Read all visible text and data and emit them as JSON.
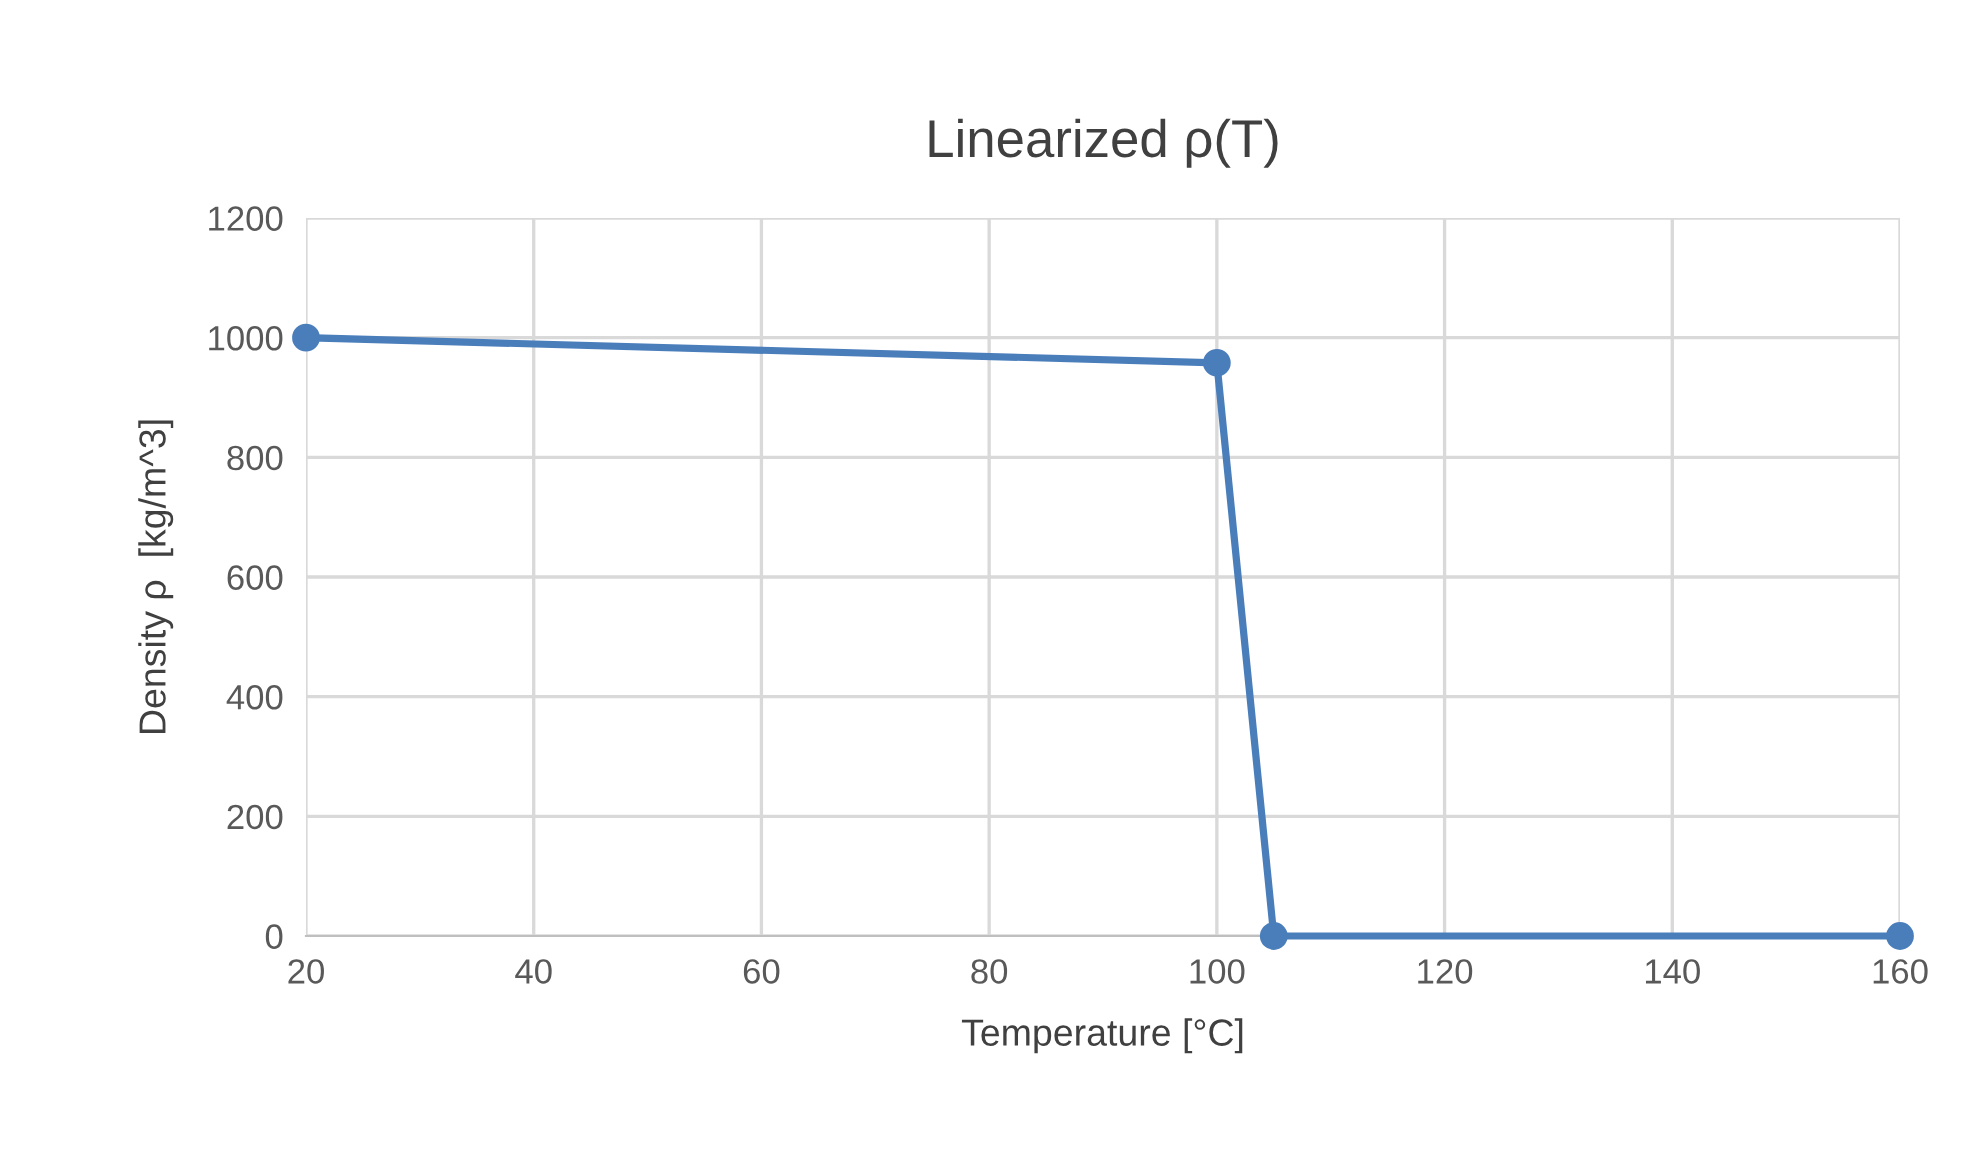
{
  "chart_data": {
    "type": "line",
    "title": "Linearized ρ(T)",
    "xlabel": "Temperature [°C]",
    "ylabel": "Density ρ  [kg/m^3]",
    "x": [
      20,
      100,
      105,
      160
    ],
    "series": [
      {
        "color": "#4a7ebb",
        "values": [
          1000,
          958,
          0,
          0
        ]
      }
    ],
    "xlim": [
      20,
      160
    ],
    "xticks": [
      20,
      40,
      60,
      80,
      100,
      120,
      140,
      160
    ],
    "ylim": [
      0,
      1200
    ],
    "yticks": [
      0,
      200,
      400,
      600,
      800,
      1000,
      1200
    ],
    "grid": true,
    "marker": "circle",
    "line_style": "solid",
    "legend": false
  }
}
